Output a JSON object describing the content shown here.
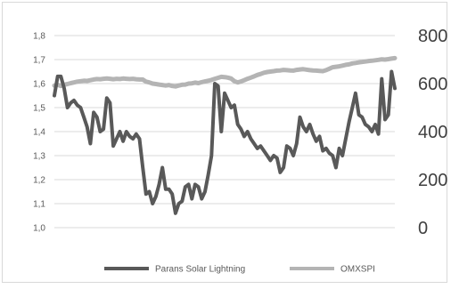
{
  "chart_data": {
    "type": "line",
    "title": "",
    "xlabel": "",
    "ylabel": "",
    "legend_position": "bottom",
    "grid": true,
    "y_left": {
      "min": 1.0,
      "max": 1.8,
      "ticks": [
        "1,8",
        "1,7",
        "1,6",
        "1,5",
        "1,4",
        "1,3",
        "1,2",
        "1,1",
        "1,0"
      ]
    },
    "y_right": {
      "min": 0,
      "max": 800,
      "ticks": [
        "800",
        "600",
        "400",
        "200",
        "0"
      ]
    },
    "series": [
      {
        "name": "Parans Solar Lightning",
        "axis": "left",
        "color": "#595959",
        "values": [
          1.55,
          1.63,
          1.63,
          1.58,
          1.5,
          1.52,
          1.53,
          1.51,
          1.5,
          1.46,
          1.42,
          1.35,
          1.48,
          1.46,
          1.4,
          1.41,
          1.54,
          1.52,
          1.34,
          1.37,
          1.4,
          1.36,
          1.4,
          1.38,
          1.37,
          1.39,
          1.37,
          1.25,
          1.14,
          1.15,
          1.1,
          1.13,
          1.18,
          1.25,
          1.16,
          1.16,
          1.14,
          1.06,
          1.1,
          1.11,
          1.17,
          1.18,
          1.12,
          1.18,
          1.17,
          1.12,
          1.15,
          1.22,
          1.3,
          1.6,
          1.59,
          1.4,
          1.56,
          1.53,
          1.5,
          1.51,
          1.43,
          1.41,
          1.38,
          1.4,
          1.37,
          1.35,
          1.33,
          1.34,
          1.32,
          1.3,
          1.28,
          1.3,
          1.29,
          1.23,
          1.25,
          1.34,
          1.33,
          1.3,
          1.35,
          1.46,
          1.42,
          1.4,
          1.43,
          1.39,
          1.36,
          1.38,
          1.32,
          1.33,
          1.31,
          1.3,
          1.25,
          1.33,
          1.3,
          1.37,
          1.44,
          1.5,
          1.56,
          1.47,
          1.46,
          1.43,
          1.42,
          1.4,
          1.43,
          1.39,
          1.62,
          1.45,
          1.47,
          1.65,
          1.58
        ]
      },
      {
        "name": "OMXSPI",
        "axis": "right",
        "color": "#b4b4b4",
        "values": [
          592,
          595,
          590,
          595,
          598,
          602,
          605,
          608,
          610,
          612,
          611,
          614,
          617,
          619,
          618,
          620,
          621,
          620,
          618,
          620,
          619,
          621,
          620,
          619,
          620,
          618,
          617,
          617,
          608,
          605,
          600,
          598,
          596,
          594,
          592,
          594,
          590,
          588,
          592,
          595,
          596,
          600,
          601,
          604,
          602,
          606,
          609,
          612,
          615,
          620,
          624,
          628,
          627,
          625,
          621,
          610,
          605,
          609,
          614,
          620,
          625,
          630,
          636,
          640,
          645,
          648,
          650,
          652,
          654,
          655,
          657,
          656,
          655,
          654,
          657,
          659,
          660,
          658,
          656,
          655,
          654,
          653,
          652,
          656,
          662,
          668,
          670,
          672,
          675,
          678,
          680,
          684,
          686,
          688,
          690,
          692,
          694,
          695,
          697,
          699,
          701,
          700,
          702,
          704,
          706
        ]
      }
    ]
  }
}
